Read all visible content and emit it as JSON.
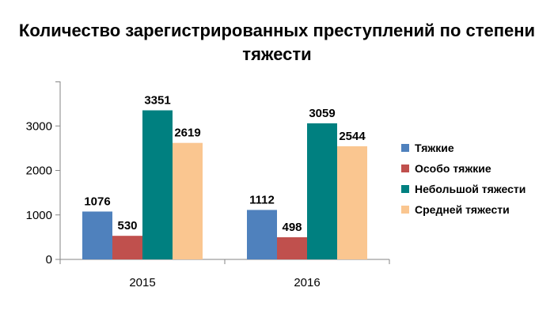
{
  "chart_data": {
    "type": "bar",
    "title": "Количество зарегистрированных преступлений по степени тяжести",
    "categories": [
      "2015",
      "2016"
    ],
    "series": [
      {
        "name": "Тяжкие",
        "values": [
          1076,
          1112
        ],
        "color": "#4f81bd"
      },
      {
        "name": "Особо тяжкие",
        "values": [
          530,
          498
        ],
        "color": "#c0504d"
      },
      {
        "name": "Небольшой тяжести",
        "values": [
          3351,
          3059
        ],
        "color": "#008080"
      },
      {
        "name": "Средней тяжести",
        "values": [
          2619,
          2544
        ],
        "color": "#fac690"
      }
    ],
    "ylim": [
      0,
      4000
    ],
    "yticks": [
      "0",
      "1000",
      "2000",
      "3000"
    ],
    "xlabel": "",
    "ylabel": "",
    "grid": false,
    "legend_position": "right"
  }
}
